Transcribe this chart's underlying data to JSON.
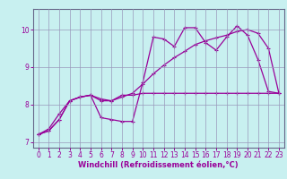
{
  "xlabel": "Windchill (Refroidissement éolien,°C)",
  "ylabel": "",
  "bg_color": "#c8f0f0",
  "grid_color": "#9999bb",
  "line_color": "#990099",
  "spine_color": "#666688",
  "xlim": [
    -0.5,
    23.5
  ],
  "ylim": [
    6.85,
    10.55
  ],
  "yticks": [
    7,
    8,
    9,
    10
  ],
  "xticks": [
    0,
    1,
    2,
    3,
    4,
    5,
    6,
    7,
    8,
    9,
    10,
    11,
    12,
    13,
    14,
    15,
    16,
    17,
    18,
    19,
    20,
    21,
    22,
    23
  ],
  "series1_x": [
    0,
    1,
    2,
    3,
    4,
    5,
    6,
    7,
    8,
    9,
    10,
    11,
    12,
    13,
    14,
    15,
    16,
    17,
    18,
    19,
    20,
    21,
    22,
    23
  ],
  "series1_y": [
    7.2,
    7.3,
    7.6,
    8.1,
    8.2,
    8.25,
    7.65,
    7.6,
    7.55,
    7.55,
    8.6,
    9.8,
    9.75,
    9.55,
    10.05,
    10.05,
    9.65,
    9.45,
    9.8,
    10.1,
    9.85,
    9.2,
    8.35,
    8.3
  ],
  "series2_x": [
    0,
    1,
    2,
    3,
    4,
    5,
    6,
    7,
    8,
    9,
    10,
    11,
    12,
    13,
    14,
    15,
    16,
    17,
    18,
    19,
    20,
    21,
    22,
    23
  ],
  "series2_y": [
    7.2,
    7.3,
    7.6,
    8.1,
    8.2,
    8.25,
    8.15,
    8.1,
    8.25,
    8.25,
    8.3,
    8.3,
    8.3,
    8.3,
    8.3,
    8.3,
    8.3,
    8.3,
    8.3,
    8.3,
    8.3,
    8.3,
    8.3,
    8.3
  ],
  "series3_x": [
    0,
    1,
    2,
    3,
    4,
    5,
    6,
    7,
    8,
    9,
    10,
    11,
    12,
    13,
    14,
    15,
    16,
    17,
    18,
    19,
    20,
    21,
    22,
    23
  ],
  "series3_y": [
    7.2,
    7.35,
    7.75,
    8.1,
    8.2,
    8.25,
    8.1,
    8.1,
    8.2,
    8.3,
    8.55,
    8.82,
    9.05,
    9.25,
    9.42,
    9.6,
    9.7,
    9.78,
    9.85,
    9.95,
    10.0,
    9.9,
    9.5,
    8.3
  ],
  "tick_fontsize": 5.5,
  "xlabel_fontsize": 6.0
}
